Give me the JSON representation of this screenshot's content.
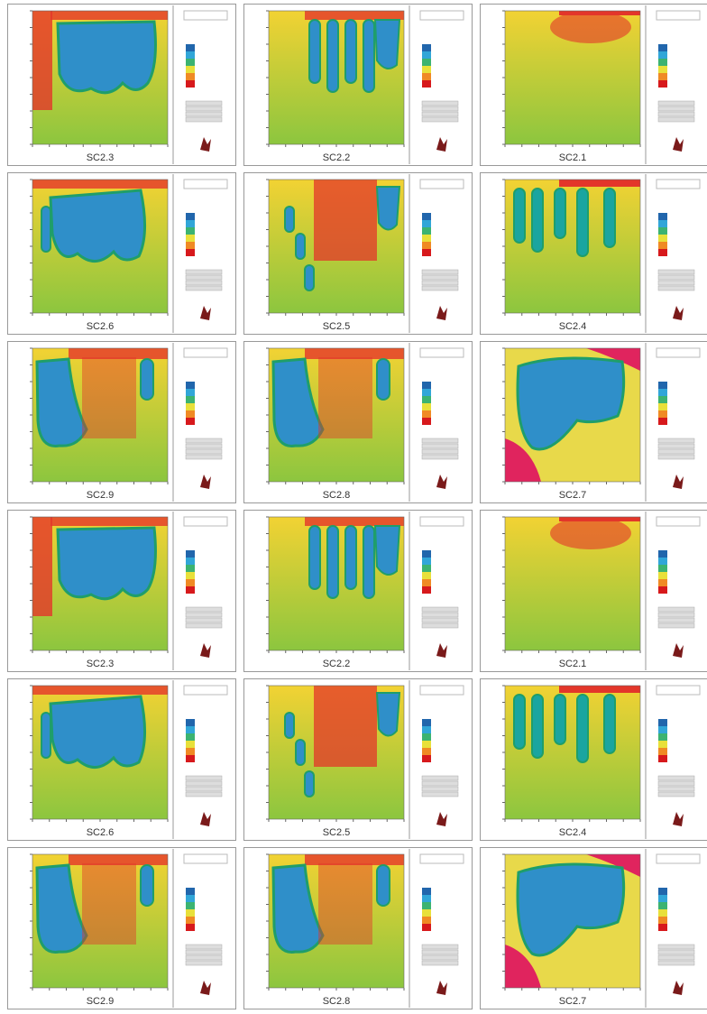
{
  "panels": [
    {
      "label": "SC2.3"
    },
    {
      "label": "SC2.2"
    },
    {
      "label": "SC2.1"
    },
    {
      "label": "SC2.6"
    },
    {
      "label": "SC2.5"
    },
    {
      "label": "SC2.4"
    },
    {
      "label": "SC2.9"
    },
    {
      "label": "SC2.8"
    },
    {
      "label": "SC2.7"
    },
    {
      "label": "SC2.3"
    },
    {
      "label": "SC2.2"
    },
    {
      "label": "SC2.1"
    },
    {
      "label": "SC2.6"
    },
    {
      "label": "SC2.5"
    },
    {
      "label": "SC2.4"
    },
    {
      "label": "SC2.9"
    },
    {
      "label": "SC2.8"
    },
    {
      "label": "SC2.7"
    }
  ]
}
